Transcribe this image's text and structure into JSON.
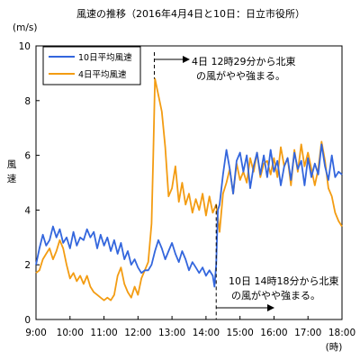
{
  "chart_data": {
    "type": "line",
    "title": "風速の推移（2016年4月4日と10日：日立市役所）",
    "ylabel_unit": "(m/s)",
    "ylabel": [
      "風",
      "速"
    ],
    "xlabel_unit": "(時)",
    "ylim": [
      0,
      10
    ],
    "yticks": [
      0,
      2,
      4,
      6,
      8,
      10
    ],
    "xlim": [
      9,
      18
    ],
    "xticks": [
      9,
      10,
      11,
      12,
      13,
      14,
      15,
      16,
      17,
      18
    ],
    "xtick_labels": [
      "9:00",
      "10:00",
      "11:00",
      "12:00",
      "13:00",
      "14:00",
      "15:00",
      "16:00",
      "17:00",
      "18:00"
    ],
    "grid": false,
    "legend_position": "top-left",
    "series": [
      {
        "name": "10日平均風速",
        "color": "#3366dd",
        "x": [
          9.0,
          9.1,
          9.2,
          9.3,
          9.4,
          9.5,
          9.6,
          9.7,
          9.8,
          9.9,
          10.0,
          10.1,
          10.2,
          10.3,
          10.4,
          10.5,
          10.6,
          10.7,
          10.8,
          10.9,
          11.0,
          11.1,
          11.2,
          11.3,
          11.4,
          11.5,
          11.6,
          11.7,
          11.8,
          11.9,
          12.0,
          12.1,
          12.2,
          12.3,
          12.4,
          12.5,
          12.6,
          12.7,
          12.8,
          12.9,
          13.0,
          13.1,
          13.2,
          13.3,
          13.4,
          13.5,
          13.6,
          13.7,
          13.8,
          13.9,
          14.0,
          14.1,
          14.2,
          14.25,
          14.3,
          14.35,
          14.4,
          14.5,
          14.6,
          14.7,
          14.8,
          14.9,
          15.0,
          15.1,
          15.2,
          15.3,
          15.4,
          15.5,
          15.6,
          15.7,
          15.8,
          15.9,
          16.0,
          16.1,
          16.2,
          16.3,
          16.4,
          16.5,
          16.6,
          16.7,
          16.8,
          16.9,
          17.0,
          17.1,
          17.2,
          17.3,
          17.4,
          17.5,
          17.6,
          17.7,
          17.8,
          17.9,
          18.0
        ],
        "values": [
          2.0,
          2.6,
          3.1,
          2.7,
          2.9,
          3.4,
          3.0,
          3.3,
          2.8,
          3.0,
          2.6,
          3.2,
          2.7,
          3.0,
          2.9,
          3.3,
          3.0,
          3.2,
          2.6,
          3.1,
          2.7,
          3.0,
          2.5,
          2.9,
          2.4,
          2.8,
          2.2,
          2.5,
          2.0,
          2.2,
          1.9,
          1.7,
          1.8,
          1.8,
          2.0,
          2.5,
          2.9,
          2.6,
          2.2,
          2.5,
          2.8,
          2.4,
          2.1,
          2.5,
          2.2,
          1.8,
          2.1,
          1.9,
          1.7,
          1.9,
          1.6,
          1.8,
          1.6,
          1.2,
          2.0,
          4.0,
          4.2,
          5.3,
          6.2,
          5.5,
          4.6,
          5.8,
          6.1,
          5.4,
          6.0,
          4.8,
          5.6,
          6.1,
          5.3,
          6.0,
          5.2,
          6.2,
          5.4,
          5.8,
          4.9,
          5.6,
          5.9,
          5.1,
          6.1,
          5.5,
          5.8,
          4.9,
          5.9,
          5.2,
          5.7,
          5.3,
          6.4,
          5.6,
          5.1,
          6.0,
          5.2,
          5.4,
          5.3
        ]
      },
      {
        "name": "4日平均風速",
        "color": "#f39c12",
        "x": [
          9.0,
          9.1,
          9.2,
          9.3,
          9.4,
          9.5,
          9.6,
          9.7,
          9.8,
          9.9,
          10.0,
          10.1,
          10.2,
          10.3,
          10.4,
          10.5,
          10.6,
          10.7,
          10.8,
          10.9,
          11.0,
          11.1,
          11.2,
          11.3,
          11.4,
          11.5,
          11.6,
          11.7,
          11.8,
          11.9,
          12.0,
          12.1,
          12.2,
          12.3,
          12.4,
          12.45,
          12.5,
          12.6,
          12.7,
          12.8,
          12.9,
          13.0,
          13.1,
          13.2,
          13.3,
          13.4,
          13.5,
          13.6,
          13.7,
          13.8,
          13.9,
          14.0,
          14.1,
          14.2,
          14.3,
          14.4,
          14.5,
          14.6,
          14.7,
          14.8,
          14.9,
          15.0,
          15.1,
          15.2,
          15.3,
          15.4,
          15.5,
          15.6,
          15.7,
          15.8,
          15.9,
          16.0,
          16.1,
          16.2,
          16.3,
          16.4,
          16.5,
          16.6,
          16.7,
          16.8,
          16.9,
          17.0,
          17.1,
          17.2,
          17.3,
          17.4,
          17.5,
          17.6,
          17.7,
          17.8,
          17.9,
          18.0
        ],
        "values": [
          1.7,
          1.8,
          2.2,
          2.4,
          2.6,
          2.2,
          2.5,
          2.9,
          2.6,
          2.0,
          1.5,
          1.7,
          1.4,
          1.6,
          1.3,
          1.6,
          1.2,
          1.0,
          0.9,
          0.8,
          0.7,
          0.8,
          0.7,
          0.9,
          1.6,
          1.9,
          1.3,
          1.0,
          0.8,
          1.2,
          0.9,
          1.5,
          1.8,
          2.1,
          3.5,
          6.0,
          8.8,
          8.2,
          7.6,
          6.3,
          4.5,
          4.8,
          5.6,
          4.3,
          5.0,
          4.2,
          4.6,
          3.9,
          4.4,
          4.0,
          4.6,
          3.8,
          4.5,
          3.9,
          4.2,
          3.2,
          4.6,
          5.0,
          5.5,
          4.6,
          5.7,
          5.1,
          5.4,
          5.0,
          5.9,
          5.4,
          6.1,
          5.2,
          5.7,
          5.8,
          5.3,
          5.9,
          5.2,
          6.3,
          5.6,
          5.9,
          4.9,
          6.2,
          5.4,
          6.4,
          5.6,
          6.1,
          5.5,
          4.9,
          5.5,
          6.5,
          5.8,
          4.8,
          4.5,
          3.9,
          3.6,
          3.4
        ]
      }
    ],
    "annotations": [
      {
        "id": "ann4",
        "lines": [
          "4日 12時29分から北東",
          "の風がやや強まる。"
        ],
        "at_x": 12.48
      },
      {
        "id": "ann10",
        "lines": [
          "10日 14時18分から北東",
          "の風がやや強まる。"
        ],
        "at_x": 14.3
      }
    ]
  }
}
